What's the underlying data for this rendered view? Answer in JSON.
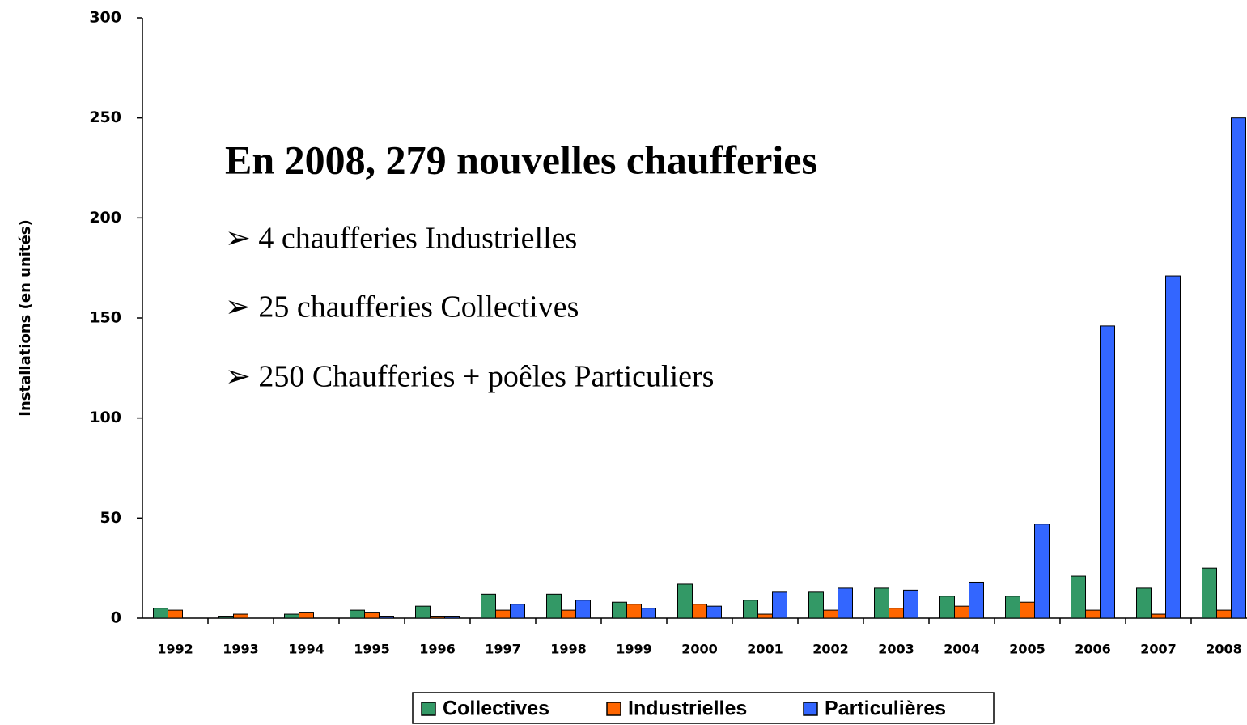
{
  "chart_data": {
    "type": "bar",
    "y_label": "Installations (en unités)",
    "categories": [
      "1992",
      "1993",
      "1994",
      "1995",
      "1996",
      "1997",
      "1998",
      "1999",
      "2000",
      "2001",
      "2002",
      "2003",
      "2004",
      "2005",
      "2006",
      "2007",
      "2008"
    ],
    "series": [
      {
        "name": "Collectives",
        "color": "#339966",
        "values": [
          5,
          1,
          2,
          4,
          6,
          12,
          12,
          8,
          17,
          9,
          13,
          15,
          11,
          11,
          21,
          15,
          25
        ]
      },
      {
        "name": "Industrielles",
        "color": "#ff6600",
        "values": [
          4,
          2,
          3,
          3,
          1,
          4,
          4,
          7,
          7,
          2,
          4,
          5,
          6,
          8,
          4,
          2,
          4
        ]
      },
      {
        "name": "Particulières",
        "color": "#3366ff",
        "values": [
          0,
          0,
          0,
          1,
          1,
          7,
          9,
          5,
          6,
          13,
          15,
          14,
          18,
          47,
          146,
          171,
          250
        ]
      }
    ],
    "ylim": [
      0,
      300
    ],
    "yticks": [
      0,
      50,
      100,
      150,
      200,
      250,
      300
    ],
    "grid": false,
    "annotation_title": "En 2008,  279 nouvelles chaufferies",
    "annotation_lines": [
      "➢ 4 chaufferies Industrielles",
      "➢ 25 chaufferies Collectives",
      "➢ 250 Chaufferies + poêles Particuliers"
    ]
  }
}
